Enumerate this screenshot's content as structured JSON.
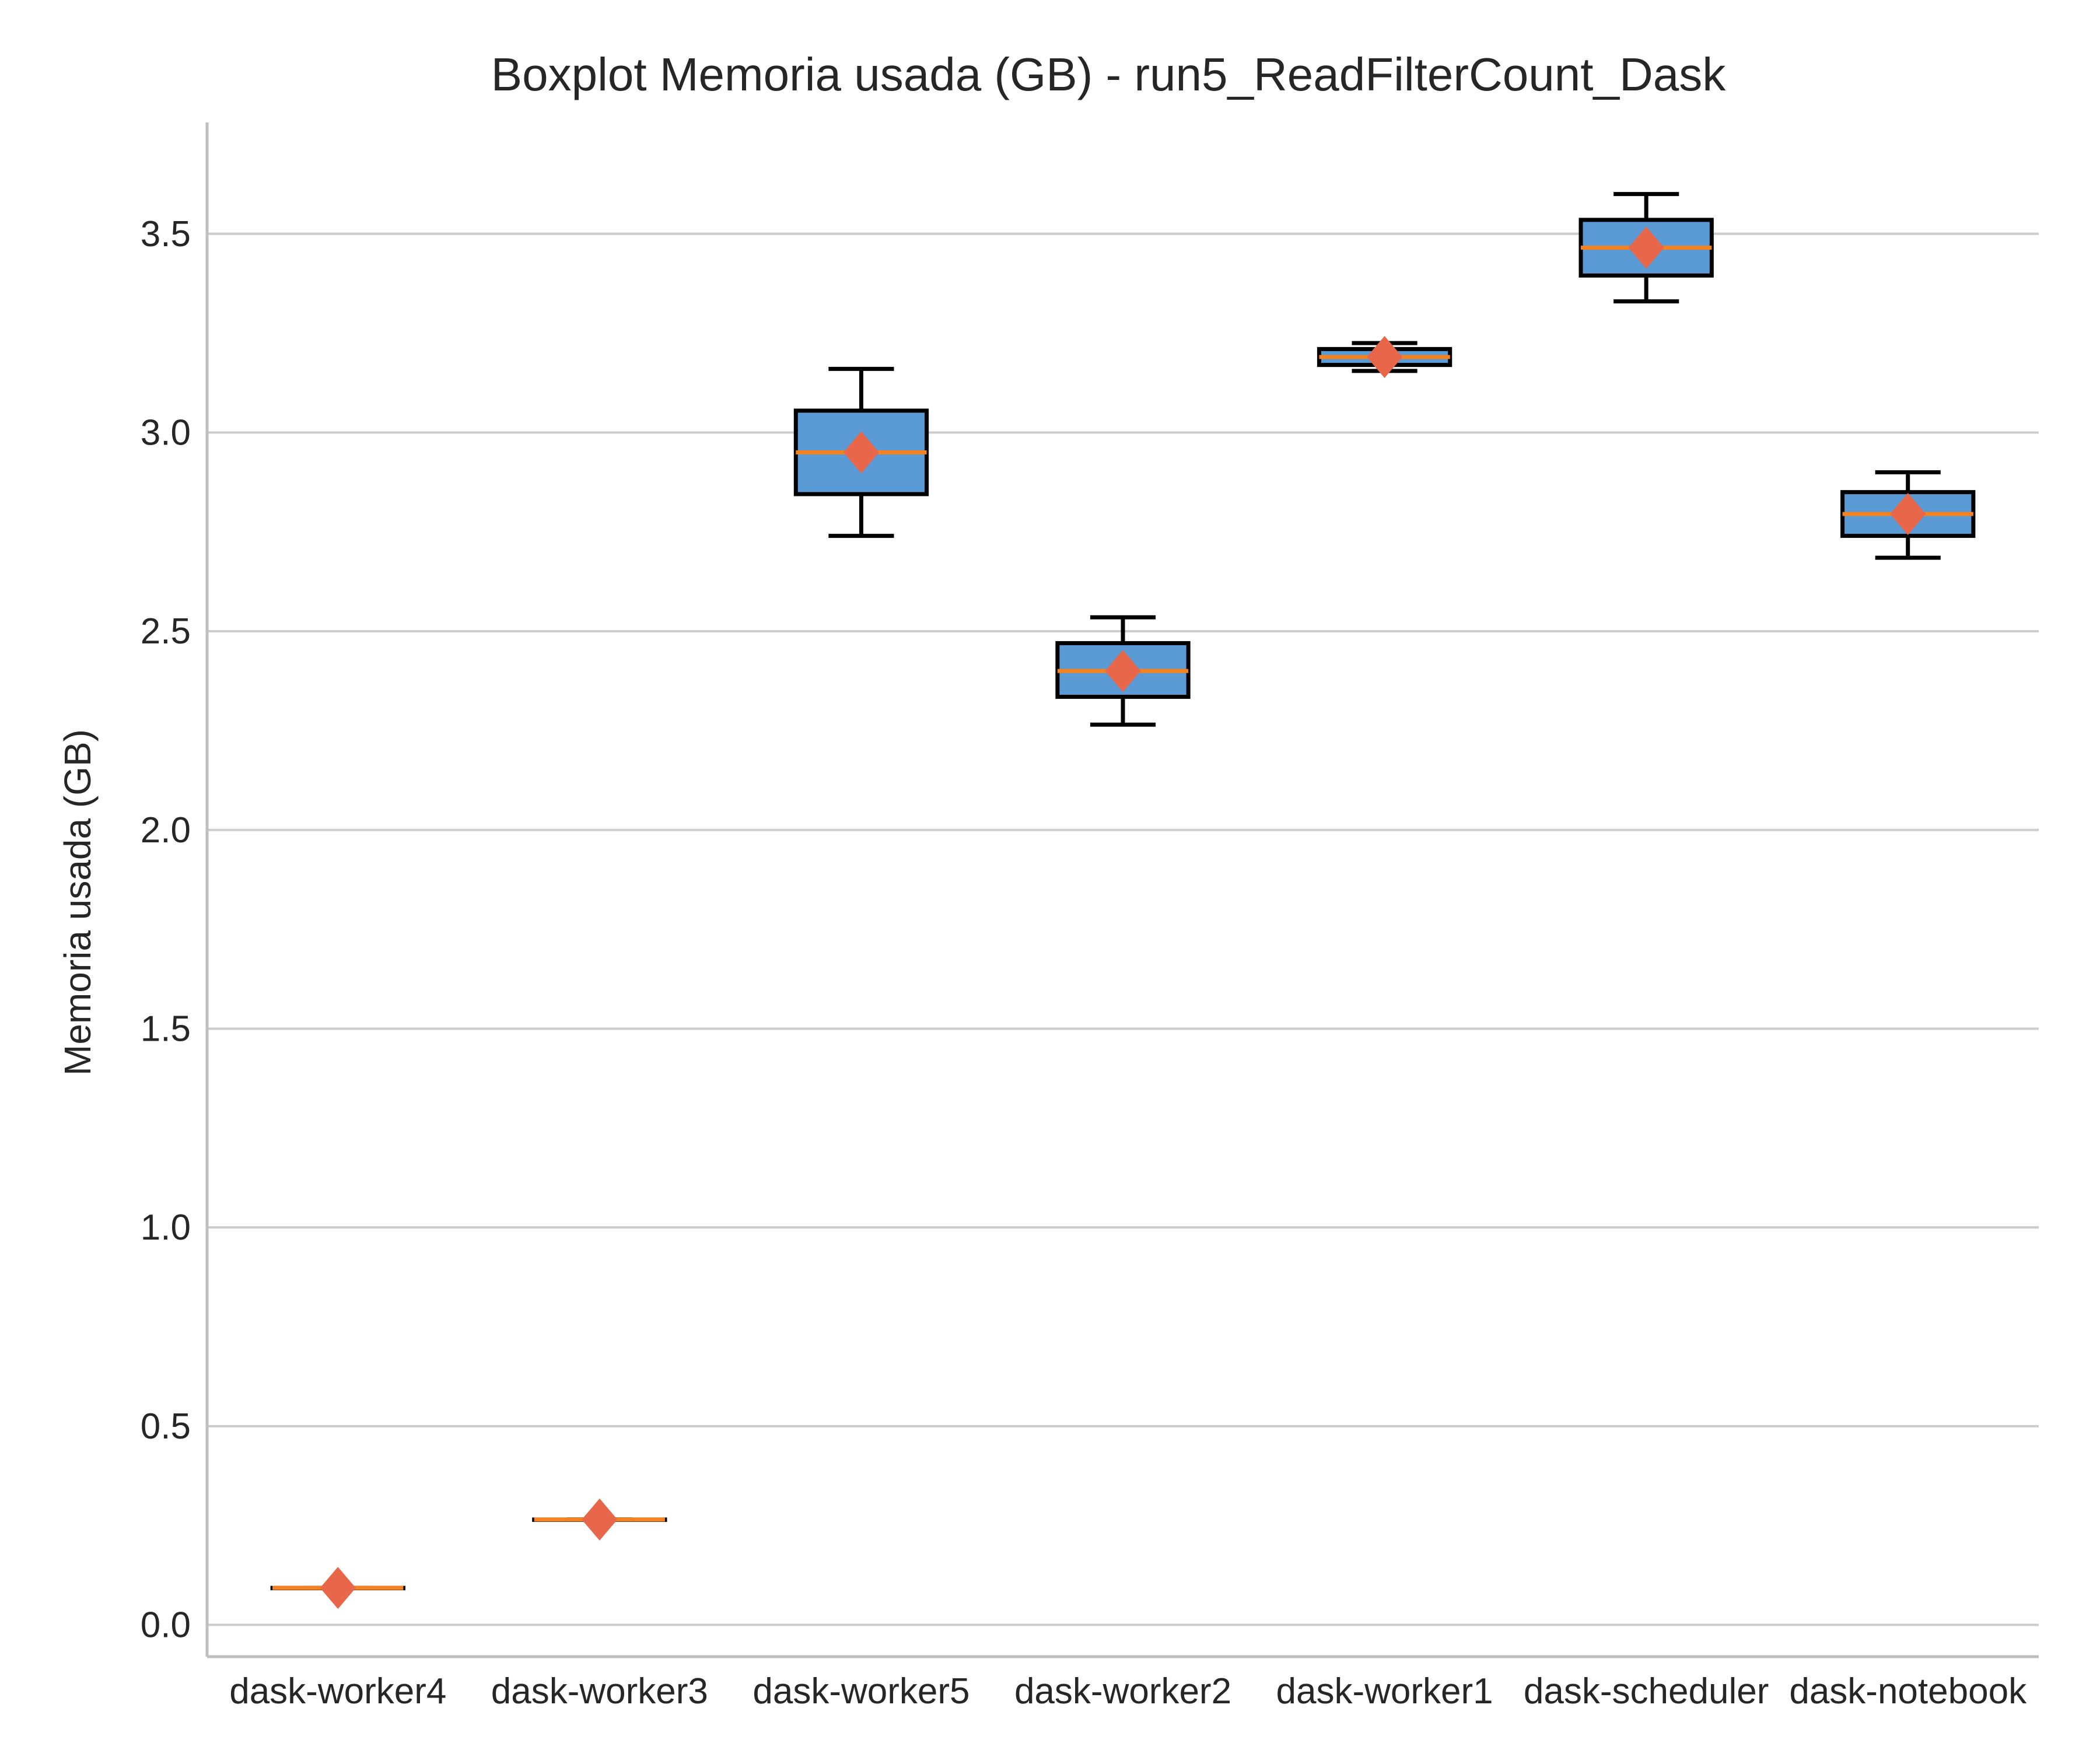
{
  "chart_data": {
    "type": "box",
    "title": "Boxplot Memoria usada (GB) - run5_ReadFilterCount_Dask",
    "xlabel": "",
    "ylabel": "Memoria usada (GB)",
    "ylim": [
      -0.08,
      3.78
    ],
    "yticks": [
      "0.0",
      "0.5",
      "1.0",
      "1.5",
      "2.0",
      "2.5",
      "3.0",
      "3.5"
    ],
    "grid": "horizontal",
    "colors": {
      "box_fill": "#5b9bd5",
      "box_edge": "#000000",
      "median": "#f5821f",
      "mean_marker": "#e8664a",
      "grid": "#cccccc",
      "axis": "#bfbfbf"
    },
    "categories": [
      "dask-worker4",
      "dask-worker3",
      "dask-worker5",
      "dask-worker2",
      "dask-worker1",
      "dask-scheduler",
      "dask-notebook"
    ],
    "boxes": [
      {
        "label": "dask-worker4",
        "whislo": 0.093,
        "q1": 0.093,
        "median": 0.093,
        "q3": 0.093,
        "whishi": 0.093,
        "mean": 0.093
      },
      {
        "label": "dask-worker3",
        "whislo": 0.265,
        "q1": 0.265,
        "median": 0.265,
        "q3": 0.265,
        "whishi": 0.265,
        "mean": 0.265
      },
      {
        "label": "dask-worker5",
        "whislo": 2.74,
        "q1": 2.845,
        "median": 2.95,
        "q3": 3.055,
        "whishi": 3.16,
        "mean": 2.95
      },
      {
        "label": "dask-worker2",
        "whislo": 2.265,
        "q1": 2.335,
        "median": 2.4,
        "q3": 2.47,
        "whishi": 2.535,
        "mean": 2.4
      },
      {
        "label": "dask-worker1",
        "whislo": 3.155,
        "q1": 3.17,
        "median": 3.19,
        "q3": 3.21,
        "whishi": 3.225,
        "mean": 3.19
      },
      {
        "label": "dask-scheduler",
        "whislo": 3.33,
        "q1": 3.395,
        "median": 3.465,
        "q3": 3.535,
        "whishi": 3.6,
        "mean": 3.465
      },
      {
        "label": "dask-notebook",
        "whislo": 2.685,
        "q1": 2.74,
        "median": 2.795,
        "q3": 2.85,
        "whishi": 2.9,
        "mean": 2.795
      }
    ]
  }
}
